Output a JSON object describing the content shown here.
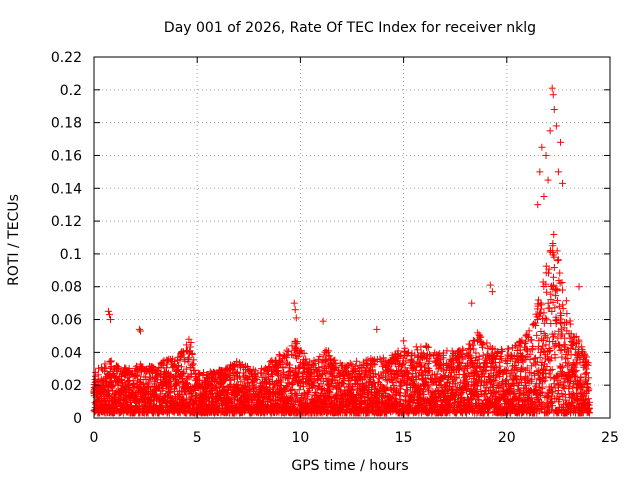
{
  "chart_data": {
    "type": "scatter",
    "title": "Day 001 of 2026, Rate Of TEC Index for receiver nklg",
    "xlabel": "GPS time / hours",
    "ylabel": "ROTI / TECUs",
    "xlim": [
      0,
      25
    ],
    "ylim": [
      0,
      0.22
    ],
    "xticks": [
      0,
      5,
      10,
      15,
      20,
      25
    ],
    "xtick_labels": [
      "0",
      "5",
      "10",
      "15",
      "20",
      "25"
    ],
    "yticks": [
      0,
      0.02,
      0.04,
      0.06,
      0.08,
      0.1,
      0.12,
      0.14,
      0.16,
      0.18,
      0.2,
      0.22
    ],
    "ytick_labels": [
      "0",
      "0.02",
      "0.04",
      "0.06",
      "0.08",
      "0.1",
      "0.12",
      "0.14",
      "0.16",
      "0.18",
      "0.2",
      "0.22"
    ],
    "grid": true,
    "marker": "+",
    "color": "#ff0000",
    "series": [
      {
        "name": "ROTI",
        "profile_hours": [
          0,
          0.7,
          1.5,
          2.2,
          3,
          4,
          4.6,
          5,
          6,
          7,
          8,
          9,
          9.8,
          10.5,
          11.2,
          12,
          13,
          14,
          15,
          16,
          17,
          18,
          18.5,
          19.5,
          20.5,
          21.3,
          21.7,
          22,
          22.3,
          22.6,
          23,
          23.5,
          24
        ],
        "profile_upper_roti": [
          0.025,
          0.033,
          0.028,
          0.03,
          0.03,
          0.035,
          0.045,
          0.025,
          0.026,
          0.032,
          0.026,
          0.036,
          0.045,
          0.03,
          0.04,
          0.03,
          0.033,
          0.034,
          0.04,
          0.042,
          0.038,
          0.04,
          0.05,
          0.038,
          0.042,
          0.055,
          0.08,
          0.1,
          0.11,
          0.09,
          0.06,
          0.045,
          0.03
        ],
        "outliers_x": [
          0.7,
          0.75,
          0.8,
          2.2,
          2.25,
          4.6,
          4.7,
          9.7,
          9.75,
          9.8,
          11.1,
          13.7,
          15.0,
          18.3,
          19.2,
          19.3,
          21.5,
          21.6,
          21.7,
          21.8,
          21.9,
          22.0,
          22.1,
          22.2,
          22.25,
          22.3,
          22.4,
          22.5,
          22.6,
          22.7,
          23.5
        ],
        "outliers_y": [
          0.065,
          0.063,
          0.06,
          0.054,
          0.053,
          0.048,
          0.046,
          0.07,
          0.066,
          0.061,
          0.059,
          0.054,
          0.047,
          0.07,
          0.081,
          0.077,
          0.13,
          0.15,
          0.165,
          0.135,
          0.16,
          0.145,
          0.175,
          0.201,
          0.197,
          0.188,
          0.178,
          0.15,
          0.168,
          0.143,
          0.08
        ]
      }
    ]
  }
}
